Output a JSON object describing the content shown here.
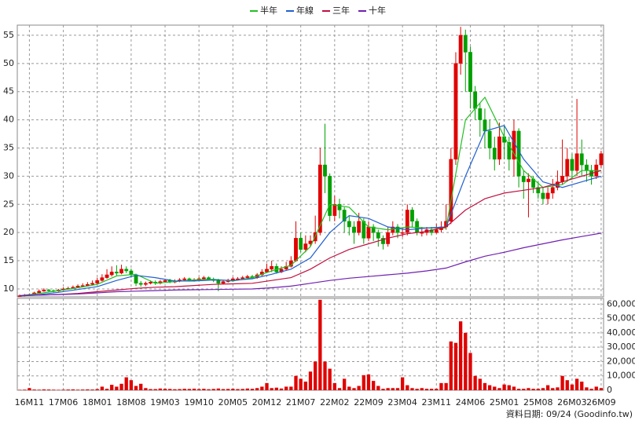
{
  "chart_data": {
    "type": "candlestick",
    "categories": [
      null,
      null,
      "16M11",
      null,
      null,
      null,
      null,
      null,
      null,
      "17M06",
      null,
      null,
      null,
      null,
      null,
      null,
      "18M01",
      null,
      null,
      null,
      null,
      null,
      null,
      "18M08",
      null,
      null,
      null,
      null,
      null,
      null,
      "19M03",
      null,
      null,
      null,
      null,
      null,
      null,
      "19M10",
      null,
      null,
      null,
      null,
      null,
      null,
      "20M05",
      null,
      null,
      null,
      null,
      null,
      null,
      "20M12",
      null,
      null,
      null,
      null,
      null,
      null,
      "21M07",
      null,
      null,
      null,
      null,
      null,
      null,
      "22M02",
      null,
      null,
      null,
      null,
      null,
      null,
      "22M09",
      null,
      null,
      null,
      null,
      null,
      null,
      "23M04",
      null,
      null,
      null,
      null,
      null,
      null,
      "23M11",
      null,
      null,
      null,
      null,
      null,
      null,
      "24M06",
      null,
      null,
      null,
      null,
      null,
      null,
      "25M01",
      null,
      null,
      null,
      null,
      null,
      null,
      "25M08",
      null,
      null,
      null,
      null,
      null,
      null,
      "26M03",
      null,
      null,
      null,
      null,
      null,
      "26M09"
    ],
    "open": [
      8.7,
      8.8,
      8.9,
      9.0,
      9.3,
      9.6,
      9.8,
      9.7,
      9.6,
      9.8,
      10.0,
      10.1,
      10.3,
      10.5,
      10.6,
      10.8,
      11.0,
      11.5,
      12.0,
      12.5,
      13.0,
      12.8,
      13.5,
      13.2,
      12.5,
      11.0,
      10.8,
      11.0,
      11.2,
      11.0,
      11.3,
      11.5,
      11.2,
      11.4,
      11.6,
      11.8,
      11.5,
      11.6,
      11.8,
      12.0,
      11.7,
      11.5,
      11.0,
      11.3,
      11.5,
      11.8,
      11.8,
      12.0,
      12.2,
      12.0,
      12.5,
      13.0,
      13.5,
      14.0,
      13.0,
      13.5,
      14.0,
      15.0,
      19.0,
      17.0,
      18.0,
      18.5,
      20.0,
      32.0,
      30.0,
      23.0,
      25.0,
      24.0,
      22.0,
      21.0,
      20.0,
      22.0,
      19.0,
      21.0,
      20.0,
      19.0,
      18.0,
      20.0,
      21.0,
      20.0,
      20.0,
      24.0,
      22.0,
      20.0,
      20.0,
      20.5,
      20.0,
      20.5,
      21.0,
      22.0,
      33.0,
      50.0,
      55.0,
      52.0,
      45.0,
      42.0,
      40.0,
      38.0,
      35.0,
      33.0,
      37.0,
      36.0,
      33.0,
      38.0,
      30.0,
      29.0,
      29.5,
      28.0,
      27.0,
      26.0,
      27.0,
      28.0,
      29.0,
      30.0,
      33.0,
      31.0,
      34.0,
      32.0,
      31.0,
      30.0,
      32.0
    ],
    "high": [
      9.0,
      9.1,
      9.2,
      9.5,
      9.9,
      10.1,
      10.0,
      9.9,
      10.0,
      10.3,
      10.4,
      10.6,
      10.8,
      11.0,
      11.2,
      11.5,
      12.0,
      12.6,
      13.5,
      14.0,
      14.2,
      14.3,
      14.0,
      13.6,
      12.7,
      11.4,
      11.3,
      11.5,
      11.5,
      11.6,
      11.8,
      11.8,
      11.7,
      11.9,
      12.1,
      12.0,
      11.9,
      12.1,
      12.3,
      12.2,
      12.0,
      11.8,
      11.6,
      11.8,
      12.1,
      12.1,
      12.3,
      12.5,
      12.5,
      12.8,
      13.5,
      14.5,
      15.0,
      14.5,
      14.0,
      14.8,
      15.8,
      22.0,
      20.0,
      19.5,
      19.5,
      23.0,
      35.0,
      39.3,
      30.5,
      26.5,
      26.0,
      24.5,
      23.0,
      22.0,
      23.5,
      22.5,
      22.0,
      21.5,
      20.5,
      19.5,
      21.0,
      22.0,
      21.5,
      20.8,
      25.0,
      24.5,
      22.5,
      21.0,
      21.0,
      21.0,
      21.5,
      22.0,
      25.0,
      35.0,
      52.0,
      56.5,
      56.0,
      53.0,
      46.0,
      43.0,
      42.0,
      40.0,
      37.0,
      39.5,
      39.0,
      37.0,
      40.0,
      38.5,
      31.0,
      30.5,
      30.0,
      29.0,
      28.0,
      28.0,
      29.5,
      31.0,
      36.5,
      35.0,
      34.0,
      43.7,
      36.5,
      33.0,
      32.0,
      33.0,
      34.5
    ],
    "low": [
      8.6,
      8.7,
      8.8,
      8.9,
      9.2,
      9.5,
      9.5,
      9.4,
      9.5,
      9.7,
      9.9,
      10.0,
      10.2,
      10.3,
      10.5,
      10.6,
      10.8,
      11.3,
      11.8,
      12.2,
      12.4,
      12.6,
      12.8,
      12.0,
      10.5,
      10.4,
      10.5,
      10.8,
      10.7,
      10.8,
      11.1,
      11.0,
      11.0,
      11.2,
      11.4,
      11.3,
      11.3,
      11.4,
      11.6,
      11.5,
      11.2,
      9.6,
      10.8,
      11.1,
      11.3,
      11.5,
      11.6,
      11.8,
      11.7,
      11.8,
      12.3,
      12.8,
      13.0,
      12.7,
      12.8,
      13.2,
      13.8,
      14.8,
      16.5,
      16.5,
      17.5,
      18.0,
      19.5,
      27.0,
      22.0,
      22.0,
      22.5,
      20.0,
      19.5,
      18.0,
      19.5,
      18.0,
      18.5,
      18.5,
      17.5,
      17.0,
      17.5,
      19.5,
      19.0,
      19.2,
      19.5,
      21.0,
      19.5,
      19.3,
      19.5,
      19.5,
      19.8,
      20.0,
      20.5,
      21.5,
      32.0,
      48.0,
      45.0,
      42.0,
      40.0,
      37.0,
      35.0,
      33.0,
      31.0,
      32.0,
      33.0,
      31.0,
      30.0,
      28.0,
      26.0,
      22.7,
      27.0,
      26.0,
      25.0,
      25.0,
      26.0,
      27.5,
      28.5,
      29.0,
      29.5,
      30.0,
      30.0,
      29.0,
      28.5,
      29.5,
      31.5
    ],
    "close": [
      8.8,
      8.9,
      9.0,
      9.3,
      9.6,
      9.8,
      9.7,
      9.6,
      9.8,
      10.0,
      10.1,
      10.3,
      10.5,
      10.6,
      10.8,
      11.0,
      11.5,
      12.0,
      12.5,
      13.0,
      12.8,
      13.5,
      13.2,
      12.5,
      11.0,
      10.8,
      11.0,
      11.2,
      11.0,
      11.3,
      11.5,
      11.2,
      11.4,
      11.6,
      11.8,
      11.5,
      11.6,
      11.8,
      12.0,
      11.7,
      11.5,
      11.0,
      11.3,
      11.5,
      11.8,
      11.8,
      12.0,
      12.2,
      12.0,
      12.5,
      13.0,
      13.5,
      14.0,
      13.0,
      13.5,
      14.0,
      15.0,
      19.0,
      17.0,
      18.0,
      18.5,
      20.0,
      32.0,
      30.0,
      23.0,
      25.0,
      24.0,
      22.0,
      21.0,
      20.0,
      22.0,
      19.0,
      21.0,
      20.0,
      19.0,
      18.0,
      20.0,
      21.0,
      20.0,
      20.0,
      24.0,
      22.0,
      20.0,
      20.0,
      20.5,
      20.0,
      20.5,
      21.0,
      22.0,
      33.0,
      50.0,
      55.0,
      52.0,
      45.0,
      42.0,
      40.0,
      38.0,
      35.0,
      33.0,
      37.0,
      36.0,
      33.0,
      38.0,
      30.0,
      29.0,
      29.5,
      28.0,
      27.0,
      26.0,
      27.0,
      28.0,
      29.0,
      30.0,
      33.0,
      31.0,
      34.0,
      32.0,
      31.0,
      30.0,
      32.0,
      34.0
    ],
    "volume": [
      300,
      400,
      1500,
      500,
      400,
      600,
      500,
      400,
      300,
      400,
      500,
      600,
      400,
      500,
      600,
      500,
      800,
      2500,
      1000,
      3800,
      2500,
      4500,
      9000,
      7000,
      3000,
      4500,
      1500,
      800,
      800,
      1200,
      1000,
      900,
      700,
      800,
      1000,
      900,
      1100,
      800,
      1000,
      700,
      900,
      1200,
      800,
      900,
      1000,
      800,
      900,
      1200,
      1000,
      1500,
      2500,
      5000,
      1500,
      1800,
      1200,
      2500,
      2500,
      10000,
      8000,
      6000,
      13000,
      20000,
      63000,
      20000,
      15000,
      5000,
      1500,
      8000,
      2500,
      1500,
      3000,
      10500,
      11000,
      6500,
      3000,
      1000,
      1500,
      1500,
      1500,
      9000,
      3500,
      1500,
      1000,
      1500,
      1000,
      1000,
      1000,
      5000,
      5000,
      34000,
      33000,
      48000,
      40000,
      26000,
      10000,
      8000,
      5000,
      3500,
      2500,
      1500,
      4000,
      3500,
      2500,
      1000,
      1000,
      1500,
      1000,
      1000,
      1500,
      3500,
      1500,
      2000,
      10000,
      7000,
      4000,
      8000,
      6000,
      2000,
      1000,
      2500,
      1500
    ],
    "up_color": "#e00000",
    "down_color": "#00a000",
    "volume_color": "#e00000",
    "ylim": [
      8.6,
      56.8
    ],
    "yticks": [
      10,
      15,
      20,
      25,
      30,
      35,
      40,
      45,
      50,
      55
    ],
    "y2lim": [
      0,
      64000
    ],
    "y2ticks": [
      0,
      {
        "value": 10000,
        "label": "10,000"
      },
      {
        "value": 20000,
        "label": "20,000"
      },
      {
        "value": 30000,
        "label": "30,000"
      },
      {
        "value": 40000,
        "label": "40,000"
      },
      {
        "value": 50000,
        "label": "50,000"
      },
      {
        "value": 60000,
        "label": "60,000"
      }
    ],
    "grid": true,
    "series": [
      {
        "name": "半年",
        "color": "#22c022",
        "x": [
          0,
          4,
          8,
          12,
          16,
          20,
          24,
          28,
          32,
          36,
          40,
          44,
          48,
          52,
          56,
          60,
          64,
          68,
          72,
          76,
          80,
          84,
          88,
          92,
          96,
          100,
          104,
          108,
          112,
          116,
          120
        ],
        "values": [
          8.8,
          9.2,
          9.7,
          10.2,
          10.8,
          12.3,
          12.6,
          11.0,
          11.3,
          11.6,
          11.7,
          11.4,
          12.0,
          13.2,
          14.2,
          17.5,
          25,
          24.5,
          21,
          20.5,
          21,
          20.8,
          20.8,
          40,
          44,
          37,
          31,
          28,
          28.5,
          31,
          31
        ]
      },
      {
        "name": "年線",
        "color": "#2060d0",
        "x": [
          0,
          4,
          8,
          12,
          16,
          20,
          24,
          28,
          32,
          36,
          40,
          44,
          48,
          52,
          56,
          60,
          64,
          68,
          72,
          76,
          80,
          84,
          88,
          92,
          96,
          100,
          104,
          108,
          112,
          116,
          120
        ],
        "values": [
          8.8,
          9.0,
          9.4,
          9.9,
          10.4,
          11.5,
          12.4,
          12.0,
          11.4,
          11.4,
          11.6,
          11.5,
          11.8,
          12.6,
          13.5,
          15.5,
          20,
          23,
          22.5,
          21,
          20.5,
          20.8,
          21,
          30,
          38,
          39,
          33,
          29,
          28,
          29,
          30
        ]
      },
      {
        "name": "三年",
        "color": "#c01040",
        "x": [
          0,
          4,
          8,
          12,
          16,
          20,
          24,
          28,
          32,
          36,
          40,
          44,
          48,
          52,
          56,
          60,
          64,
          68,
          72,
          76,
          80,
          84,
          88,
          92,
          96,
          100,
          104,
          108,
          112,
          116,
          120
        ],
        "values": [
          8.8,
          8.9,
          9.0,
          9.2,
          9.5,
          9.8,
          10.1,
          10.3,
          10.4,
          10.6,
          10.8,
          10.9,
          11.0,
          11.5,
          12.0,
          13.5,
          15.5,
          17,
          18,
          19,
          19.8,
          20.2,
          21,
          24,
          26,
          27,
          27.5,
          28,
          29,
          30,
          31
        ]
      },
      {
        "name": "十年",
        "color": "#7020b0",
        "x": [
          0,
          4,
          8,
          12,
          16,
          20,
          24,
          28,
          32,
          36,
          40,
          44,
          48,
          52,
          56,
          60,
          64,
          68,
          72,
          76,
          80,
          84,
          88,
          92,
          96,
          100,
          104,
          108,
          112,
          116,
          120
        ],
        "values": [
          8.8,
          8.9,
          9.0,
          9.1,
          9.3,
          9.5,
          9.6,
          9.7,
          9.8,
          9.85,
          9.9,
          9.95,
          10.0,
          10.2,
          10.5,
          11.0,
          11.5,
          11.9,
          12.2,
          12.5,
          12.8,
          13.2,
          13.7,
          14.8,
          15.8,
          16.5,
          17.3,
          18.0,
          18.7,
          19.3,
          19.9
        ]
      }
    ],
    "note": "資料日期: 09/24 (Goodinfo.tw)"
  }
}
